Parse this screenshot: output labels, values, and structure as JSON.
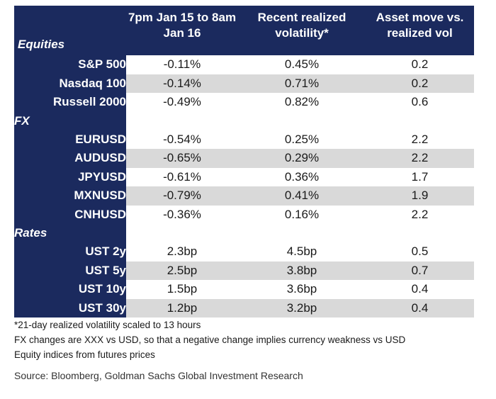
{
  "header": {
    "col_timeframe": "7pm Jan 15 to 8am Jan 16",
    "col_vol": "Recent realized volatility*",
    "col_ratio": "Asset move vs. realized vol"
  },
  "sections": [
    {
      "name": "Equities",
      "rows": [
        {
          "label": "S&P 500",
          "move": "-0.11%",
          "vol": "0.45%",
          "ratio": "0.2"
        },
        {
          "label": "Nasdaq 100",
          "move": "-0.14%",
          "vol": "0.71%",
          "ratio": "0.2"
        },
        {
          "label": "Russell 2000",
          "move": "-0.49%",
          "vol": "0.82%",
          "ratio": "0.6"
        }
      ]
    },
    {
      "name": "FX",
      "rows": [
        {
          "label": "EURUSD",
          "move": "-0.54%",
          "vol": "0.25%",
          "ratio": "2.2"
        },
        {
          "label": "AUDUSD",
          "move": "-0.65%",
          "vol": "0.29%",
          "ratio": "2.2"
        },
        {
          "label": "JPYUSD",
          "move": "-0.61%",
          "vol": "0.36%",
          "ratio": "1.7"
        },
        {
          "label": "MXNUSD",
          "move": "-0.79%",
          "vol": "0.41%",
          "ratio": "1.9"
        },
        {
          "label": "CNHUSD",
          "move": "-0.36%",
          "vol": "0.16%",
          "ratio": "2.2"
        }
      ]
    },
    {
      "name": "Rates",
      "rows": [
        {
          "label": "UST 2y",
          "move": "2.3bp",
          "vol": "4.5bp",
          "ratio": "0.5"
        },
        {
          "label": "UST 5y",
          "move": "2.5bp",
          "vol": "3.8bp",
          "ratio": "0.7"
        },
        {
          "label": "UST 10y",
          "move": "1.5bp",
          "vol": "3.6bp",
          "ratio": "0.4"
        },
        {
          "label": "UST 30y",
          "move": "1.2bp",
          "vol": "3.2bp",
          "ratio": "0.4"
        }
      ]
    }
  ],
  "notes": [
    "*21-day realized volatility scaled to 13 hours",
    "FX changes are XXX vs USD, so that a negative change implies currency weakness vs USD",
    "Equity indices from futures prices"
  ],
  "source": "Source: Bloomberg, Goldman Sachs Global Investment Research",
  "colors": {
    "header_bg": "#1b2a5e",
    "shade": "#d9d9d9"
  }
}
